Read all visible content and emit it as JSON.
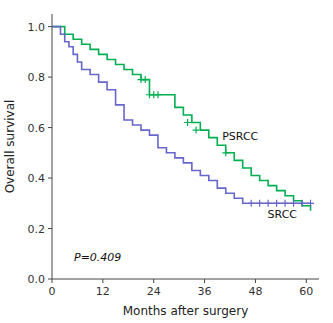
{
  "chart_data": {
    "type": "step",
    "xlabel": "Months after surgery",
    "ylabel": "Overall survival",
    "annotation": "P=0.409",
    "xlim": [
      0,
      63
    ],
    "ylim": [
      0.0,
      1.05
    ],
    "xticks": [
      0,
      12,
      24,
      36,
      48,
      60
    ],
    "yticks": [
      {
        "value": 0.0,
        "label": "0.0"
      },
      0.2,
      0.4,
      0.6,
      0.8,
      {
        "value": 1.0,
        "label": "1.0"
      }
    ],
    "grid": false,
    "series": [
      {
        "name": "PSRCC",
        "color": "#00b050",
        "x": [
          0,
          3,
          5,
          7,
          9,
          11,
          13,
          15,
          17,
          19,
          21,
          23,
          25,
          27,
          29,
          31,
          33,
          35,
          37,
          39,
          41,
          43,
          45,
          47,
          49,
          51,
          53,
          55,
          57,
          59,
          61
        ],
        "values": [
          1.0,
          0.97,
          0.95,
          0.93,
          0.91,
          0.89,
          0.87,
          0.85,
          0.83,
          0.81,
          0.79,
          0.73,
          0.73,
          0.73,
          0.68,
          0.65,
          0.62,
          0.59,
          0.56,
          0.53,
          0.5,
          0.47,
          0.44,
          0.41,
          0.39,
          0.37,
          0.35,
          0.33,
          0.31,
          0.29,
          0.27
        ],
        "censor_x": [
          21,
          22,
          23,
          24,
          25,
          32,
          34,
          41
        ],
        "censor_values": [
          0.79,
          0.79,
          0.73,
          0.73,
          0.73,
          0.62,
          0.59,
          0.5
        ]
      },
      {
        "name": "SRCC",
        "color": "#6666cc",
        "x": [
          0,
          2,
          3,
          4,
          5,
          6,
          7,
          9,
          11,
          13,
          15,
          17,
          19,
          21,
          23,
          25,
          27,
          29,
          31,
          33,
          35,
          37,
          39,
          41,
          43,
          45,
          47,
          49,
          51,
          53,
          55,
          57,
          59,
          61
        ],
        "values": [
          1.0,
          0.97,
          0.94,
          0.92,
          0.89,
          0.86,
          0.83,
          0.81,
          0.78,
          0.75,
          0.69,
          0.63,
          0.61,
          0.59,
          0.57,
          0.52,
          0.5,
          0.48,
          0.46,
          0.43,
          0.41,
          0.39,
          0.36,
          0.34,
          0.32,
          0.3,
          0.3,
          0.3,
          0.3,
          0.3,
          0.3,
          0.3,
          0.3,
          0.3
        ],
        "censor_x": [
          47,
          49,
          51,
          53,
          55,
          57,
          59,
          61
        ],
        "censor_values": [
          0.3,
          0.3,
          0.3,
          0.3,
          0.3,
          0.3,
          0.3,
          0.3
        ]
      }
    ]
  }
}
